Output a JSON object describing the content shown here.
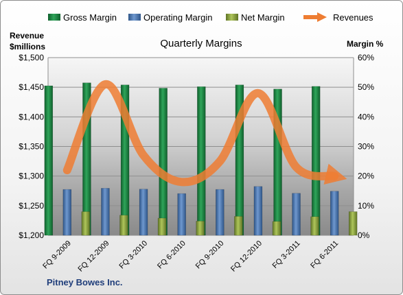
{
  "chart_data": {
    "type": "bar",
    "title": "Quarterly Margins",
    "source": "Pitney Bowes Inc.",
    "left_axis_label_line1": "Revenue",
    "left_axis_label_line2": "$millions",
    "right_axis_label": "Margin %",
    "categories": [
      "FQ 9-2009",
      "FQ 12-2009",
      "FQ 3-2010",
      "FQ 6-2010",
      "FQ 9-2010",
      "FQ 12-2010",
      "FQ 3-2011",
      "FQ 6-2011"
    ],
    "left_axis": {
      "min": 1200,
      "max": 1500,
      "step": 50,
      "ticks": [
        "$1,200",
        "$1,250",
        "$1,300",
        "$1,350",
        "$1,400",
        "$1,450",
        "$1,500"
      ]
    },
    "right_axis": {
      "min": 0,
      "max": 60,
      "step": 10,
      "ticks": [
        "0%",
        "10%",
        "20%",
        "30%",
        "40%",
        "50%",
        "60%"
      ]
    },
    "bar_series": [
      {
        "name": "Gross Margin",
        "color": "#1e8a45",
        "values": [
          50.5,
          51.5,
          50.8,
          49.7,
          50.2,
          50.8,
          49.4,
          50.3
        ]
      },
      {
        "name": "Operating Margin",
        "color": "#4b79b8",
        "values": [
          15.5,
          15.9,
          15.6,
          14.1,
          15.5,
          16.5,
          14.2,
          14.9
        ]
      },
      {
        "name": "Net Margin",
        "color": "#8ea63a",
        "values": [
          8.0,
          6.8,
          5.8,
          4.8,
          6.4,
          4.7,
          6.3,
          8.0
        ]
      }
    ],
    "line_series": {
      "name": "Revenues",
      "color": "#ee7d32",
      "values": [
        1310,
        1455,
        1335,
        1290,
        1325,
        1440,
        1315,
        1300
      ]
    },
    "legend_position": "top"
  }
}
